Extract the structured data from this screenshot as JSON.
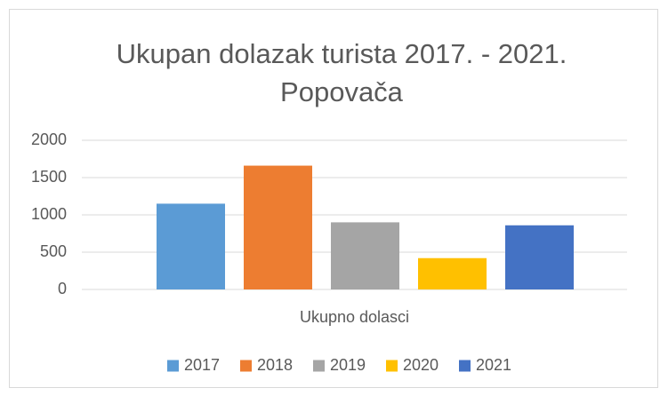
{
  "chart_data": {
    "type": "bar",
    "title": [
      "Ukupan dolazak turista 2017. - 2021.",
      "Popovača"
    ],
    "categories": [
      "Ukupno dolasci"
    ],
    "series": [
      {
        "name": "2017",
        "color": "#5b9bd5",
        "values": [
          1150
        ]
      },
      {
        "name": "2018",
        "color": "#ed7d31",
        "values": [
          1660
        ]
      },
      {
        "name": "2019",
        "color": "#a5a5a5",
        "values": [
          900
        ]
      },
      {
        "name": "2020",
        "color": "#ffc000",
        "values": [
          420
        ]
      },
      {
        "name": "2021",
        "color": "#4472c4",
        "values": [
          860
        ]
      }
    ],
    "ylim": [
      0,
      2000
    ],
    "yticks": [
      0,
      500,
      1000,
      1500,
      2000
    ],
    "grid": true,
    "legend": "bottom"
  }
}
